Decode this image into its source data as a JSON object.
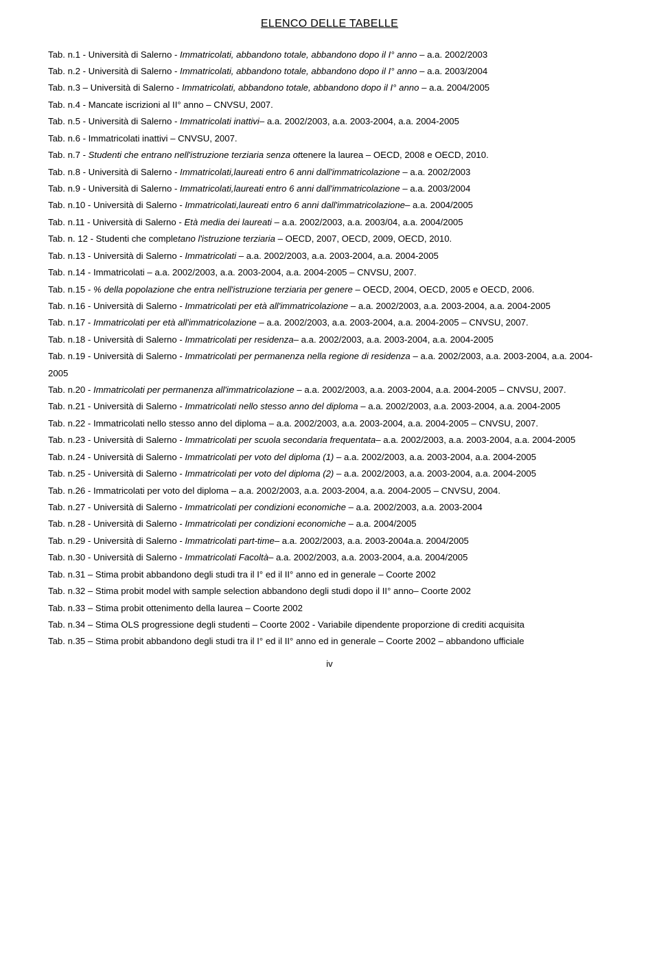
{
  "title": "ELENCO DELLE TABELLE",
  "pageNumber": "iv",
  "entries": [
    {
      "pre": "Tab. n.1 - Università di Salerno - ",
      "it": "Immatricolati, abbandono totale, abbandono dopo il I° anno",
      "post": " – a.a. 2002/2003"
    },
    {
      "pre": "Tab. n.2 - Università di Salerno - ",
      "it": "Immatricolati, abbandono totale, abbandono dopo il I° anno",
      "post": " – a.a. 2003/2004"
    },
    {
      "pre": "Tab. n.3 – Università di Salerno - ",
      "it": "Immatricolati, abbandono totale, abbandono dopo il I° anno",
      "post": " – a.a. 2004/2005"
    },
    {
      "pre": "Tab. n.4 - Mancate iscrizioni al II° anno – CNVSU, 2007.",
      "it": "",
      "post": ""
    },
    {
      "pre": "Tab. n.5 - Università di Salerno - ",
      "it": "Immatricolati inattivi",
      "post": "– a.a. 2002/2003, a.a. 2003-2004, a.a. 2004-2005"
    },
    {
      "pre": "Tab. n.6 - Immatricolati inattivi – CNVSU, 2007.",
      "it": "",
      "post": ""
    },
    {
      "pre": "Tab. n.7 - ",
      "it": "Studenti che entrano nell'istruzione terziaria senza ot",
      "post": "tenere la laurea – OECD, 2008 e OECD, 2010."
    },
    {
      "pre": "Tab. n.8 - Università di Salerno - ",
      "it": "Immatricolati,laureati entro 6 anni dall'immatricolazione",
      "post": " – a.a. 2002/2003"
    },
    {
      "pre": "Tab. n.9 - Università di Salerno - ",
      "it": "Immatricolati,laureati entro 6 anni dall'immatricolazione",
      "post": " – a.a. 2003/2004"
    },
    {
      "pre": "Tab. n.10 - Università di Salerno - ",
      "it": "Immatricolati,laureati entro 6 anni dall'immatricolazione",
      "post": "– a.a. 2004/2005"
    },
    {
      "pre": "Tab. n.11 - Università di Salerno - ",
      "it": "Età media dei laureati",
      "post": " – a.a. 2002/2003, a.a. 2003/04, a.a. 2004/2005"
    },
    {
      "pre": "Tab. n. 12 - Studenti che comple",
      "it": "tano l'istruzione terziaria",
      "post": " – OECD, 2007, OECD, 2009, OECD, 2010."
    },
    {
      "pre": "Tab. n.13 - Università di Salerno - ",
      "it": "Immatricolati",
      "post": " – a.a. 2002/2003, a.a. 2003-2004, a.a. 2004-2005"
    },
    {
      "pre": "Tab. n.14 - Immatricolati – a.a. 2002/2003, a.a. 2003-2004, a.a. 2004-2005 – CNVSU, 2007.",
      "it": "",
      "post": ""
    },
    {
      "pre": "Tab. n.15 - ",
      "it": "% della popolazione che entra nell'istruzione terziaria per genere",
      "post": " – OECD, 2004, OECD, 2005 e OECD, 2006."
    },
    {
      "pre": "Tab. n.16 - Università di Salerno - ",
      "it": "Immatricolati per età all'immatricolazione",
      "post": " – a.a. 2002/2003, a.a. 2003-2004, a.a. 2004-2005"
    },
    {
      "pre": "Tab. n.17 - ",
      "it": "Immatricolati per età all'immatricolazione",
      "post": " – a.a. 2002/2003, a.a. 2003-2004, a.a. 2004-2005 – CNVSU, 2007."
    },
    {
      "pre": "Tab. n.18 - Università di Salerno - ",
      "it": "Immatricolati per residenza",
      "post": "– a.a. 2002/2003, a.a. 2003-2004, a.a. 2004-2005"
    },
    {
      "pre": "Tab. n.19 - Università di Salerno - ",
      "it": "Immatricolati per permanenza nella regione di residenza",
      "post": " – a.a. 2002/2003, a.a. 2003-2004, a.a. 2004-2005"
    },
    {
      "pre": "Tab. n.20 - ",
      "it": "Immatricolati per permanenza all'immatricolazione",
      "post": " – a.a. 2002/2003, a.a. 2003-2004, a.a. 2004-2005 – CNVSU, 2007."
    },
    {
      "pre": "Tab. n.21 - Università di Salerno - ",
      "it": "Immatricolati nello stesso anno del diploma",
      "post": " – a.a. 2002/2003, a.a. 2003-2004, a.a. 2004-2005"
    },
    {
      "pre": "Tab. n.22 - Immatricolati nello stesso anno del diploma – a.a. 2002/2003, a.a. 2003-2004, a.a. 2004-2005 – CNVSU, 2007.",
      "it": "",
      "post": ""
    },
    {
      "pre": "Tab. n.23 - Università di Salerno - ",
      "it": "Immatricolati per scuola secondaria frequentata",
      "post": "– a.a. 2002/2003, a.a. 2003-2004, a.a. 2004-2005"
    },
    {
      "pre": "Tab. n.24 - Università di Salerno - ",
      "it": "Immatricolati per voto del diploma (1)",
      "post": " – a.a. 2002/2003, a.a. 2003-2004, a.a. 2004-2005"
    },
    {
      "pre": "Tab. n.25 - Università di Salerno - ",
      "it": "Immatricolati per voto del diploma (2)",
      "post": " – a.a. 2002/2003, a.a. 2003-2004, a.a. 2004-2005"
    },
    {
      "pre": "Tab. n.26 - Immatricolati per voto del diploma – a.a. 2002/2003, a.a. 2003-2004, a.a. 2004-2005 – CNVSU, 2004.",
      "it": "",
      "post": ""
    },
    {
      "pre": "Tab. n.27 - Università di Salerno - ",
      "it": "Immatricolati per condizioni economiche",
      "post": " – a.a. 2002/2003, a.a. 2003-2004"
    },
    {
      "pre": "Tab. n.28 - Università di Salerno - ",
      "it": "Immatricolati per condizioni economiche",
      "post": " – a.a. 2004/2005"
    },
    {
      "pre": "Tab. n.29 - Università di Salerno - ",
      "it": "Immatricolati part-time",
      "post": "– a.a. 2002/2003, a.a. 2003-2004a.a. 2004/2005"
    },
    {
      "pre": "Tab. n.30 - Università di Salerno - ",
      "it": "Immatricolati Facoltà",
      "post": "– a.a. 2002/2003, a.a. 2003-2004, a.a. 2004/2005"
    },
    {
      "pre": "Tab. n.31 – Stima probit abbandono degli studi tra il I° ed il II° anno ed in generale – Coorte 2002",
      "it": "",
      "post": ""
    },
    {
      "pre": "Tab. n.32 – Stima probit model with sample selection abbandono degli studi dopo il II° anno– Coorte 2002",
      "it": "",
      "post": ""
    },
    {
      "pre": "Tab. n.33 – Stima probit ottenimento della laurea – Coorte 2002",
      "it": "",
      "post": ""
    },
    {
      "pre": "Tab. n.34 – Stima OLS progressione degli studenti – Coorte 2002 - Variabile dipendente proporzione di crediti acquisita",
      "it": "",
      "post": ""
    },
    {
      "pre": "Tab. n.35 – Stima probit abbandono degli studi tra il I° ed il II° anno ed in generale – Coorte 2002 – abbandono ufficiale",
      "it": "",
      "post": ""
    }
  ]
}
